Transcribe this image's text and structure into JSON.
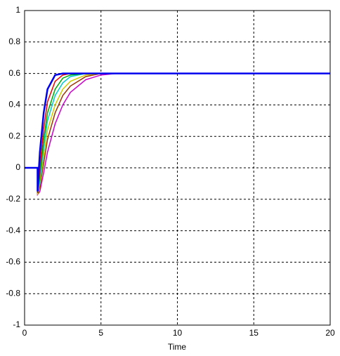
{
  "chart_data": {
    "type": "line",
    "xlabel": "Time",
    "x": [
      0,
      0.85,
      0.85,
      1,
      1.25,
      1.5,
      2,
      2.5,
      3,
      4,
      5,
      6,
      7,
      20
    ],
    "series": [
      {
        "color": "#cc00cc",
        "values": [
          0,
          0,
          -0.17,
          -0.15,
          -0.03,
          0.1,
          0.28,
          0.4,
          0.48,
          0.56,
          0.59,
          0.6,
          0.6,
          0.6
        ]
      },
      {
        "color": "#993300",
        "values": [
          0,
          0,
          -0.17,
          -0.12,
          0.03,
          0.18,
          0.35,
          0.46,
          0.52,
          0.58,
          0.6,
          0.6,
          0.6,
          0.6
        ]
      },
      {
        "color": "#cccc00",
        "values": [
          0,
          0,
          -0.17,
          -0.1,
          0.08,
          0.24,
          0.4,
          0.5,
          0.55,
          0.59,
          0.6,
          0.6,
          0.6,
          0.6
        ]
      },
      {
        "color": "#00cccc",
        "values": [
          0,
          0,
          -0.16,
          -0.08,
          0.13,
          0.3,
          0.46,
          0.54,
          0.58,
          0.6,
          0.6,
          0.6,
          0.6,
          0.6
        ]
      },
      {
        "color": "#00aa00",
        "values": [
          0,
          0,
          -0.16,
          -0.05,
          0.18,
          0.35,
          0.5,
          0.57,
          0.59,
          0.6,
          0.6,
          0.6,
          0.6,
          0.6
        ]
      },
      {
        "color": "#ee0000",
        "values": [
          0,
          0,
          -0.16,
          0.0,
          0.25,
          0.42,
          0.55,
          0.59,
          0.6,
          0.6,
          0.6,
          0.6,
          0.6,
          0.6
        ]
      },
      {
        "color": "#0000ee",
        "values": [
          0,
          0,
          -0.15,
          0.1,
          0.35,
          0.5,
          0.59,
          0.6,
          0.6,
          0.6,
          0.6,
          0.6,
          0.6,
          0.6
        ]
      }
    ],
    "xlim": [
      0,
      20
    ],
    "xticks": [
      0,
      5,
      10,
      15,
      20
    ],
    "ylim": [
      -1,
      1
    ],
    "yticks": [
      -1,
      -0.8,
      -0.6,
      -0.4,
      -0.2,
      0,
      0.2,
      0.4,
      0.6,
      0.8,
      1
    ],
    "grid": true
  }
}
